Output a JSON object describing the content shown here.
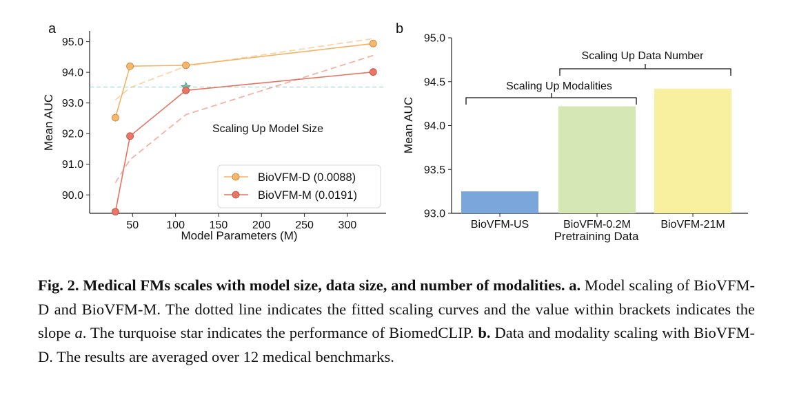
{
  "panel_a": {
    "label": "a",
    "annotation": "Scaling Up Model Size",
    "legend": [
      "BioVFM-D (0.0088)",
      "BioVFM-M (0.0191)"
    ]
  },
  "panel_b": {
    "label": "b",
    "annotations": {
      "data_number": "Scaling Up Data Number",
      "modalities": "Scaling Up Modalities"
    }
  },
  "chart_data": [
    {
      "type": "line",
      "xlabel": "Model Parameters (M)",
      "ylabel": "Mean AUC",
      "xlim": [
        0,
        345
      ],
      "ylim": [
        89.4,
        95.35
      ],
      "xticks": [
        50,
        100,
        150,
        200,
        250,
        300
      ],
      "yticks": [
        90.0,
        91.0,
        92.0,
        93.0,
        94.0,
        95.0
      ],
      "ytick_labels": [
        "90.0",
        "91.0",
        "92.0",
        "93.0",
        "94.0",
        "95.0"
      ],
      "legend_position": "bottom-right",
      "series": [
        {
          "name": "BioVFM-D (0.0088)",
          "color": "#f5b265",
          "marker_color": "#f7b969",
          "x": [
            30,
            47,
            112,
            330
          ],
          "y": [
            92.52,
            94.2,
            94.23,
            94.94
          ],
          "fit_x": [
            30,
            47,
            112,
            330
          ],
          "fit_y": [
            93.1,
            93.5,
            94.2,
            95.1
          ]
        },
        {
          "name": "BioVFM-M (0.0191)",
          "color": "#e8725f",
          "marker_color": "#ea7665",
          "x": [
            30,
            47,
            112,
            330
          ],
          "y": [
            89.45,
            91.92,
            93.41,
            94.01
          ],
          "fit_x": [
            30,
            47,
            112,
            330
          ],
          "fit_y": [
            90.4,
            91.15,
            92.62,
            94.55
          ]
        }
      ],
      "reference": {
        "y": 93.52,
        "color": "#9fd8cf",
        "star": {
          "x": 112,
          "y": 93.52,
          "color": "#6cc3a7"
        }
      }
    },
    {
      "type": "bar",
      "categories": [
        "BioVFM-US",
        "BioVFM-0.2M",
        "BioVFM-21M"
      ],
      "values": [
        93.25,
        94.22,
        94.42
      ],
      "colors": [
        "#7ba6db",
        "#d6e7b6",
        "#f8f09e"
      ],
      "xlabel": "Pretraining Data",
      "ylabel": "Mean AUC",
      "ylim": [
        93.0,
        95.0
      ],
      "yticks": [
        93.0,
        93.5,
        94.0,
        94.5,
        95.0
      ],
      "ytick_labels": [
        "93.0",
        "93.5",
        "94.0",
        "94.5",
        "95.0"
      ]
    }
  ],
  "caption": {
    "fig_label": "Fig. 2.",
    "title": "Medical FMs scales with model size, data size, and number of modalities.",
    "a_label": "a.",
    "a_text_1": "Model scaling of BioVFM-D and BioVFM-M. The dotted line indicates the fitted scaling curves and the value within brackets indicates the slope",
    "a_slope_symbol": "a",
    "a_text_2": ". The turquoise star indicates the performance of BiomedCLIP.",
    "b_label": "b.",
    "b_text": "Data and modality scaling with BioVFM-D. The results are averaged over 12 medical benchmarks."
  }
}
